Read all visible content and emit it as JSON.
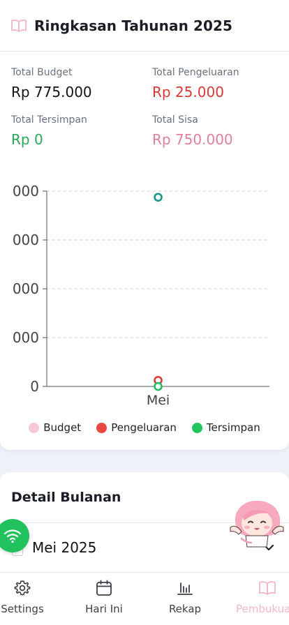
{
  "summary": {
    "title": "Ringkasan Tahunan 2025",
    "stats": [
      {
        "label": "Total Budget",
        "value": "Rp 775.000"
      },
      {
        "label": "Total Pengeluaran",
        "value": "Rp 25.000"
      },
      {
        "label": "Total Tersimpan",
        "value": "Rp 0"
      },
      {
        "label": "Total Sisa",
        "value": "Rp 750.000"
      }
    ]
  },
  "chart_data": {
    "type": "scatter",
    "categories": [
      "Mei"
    ],
    "y_tick_labels": [
      "0",
      "000",
      "000",
      "000",
      "000"
    ],
    "ylim": [
      0,
      800000
    ],
    "series": [
      {
        "name": "Budget",
        "color": "#f7c9d6",
        "values": [
          775000
        ]
      },
      {
        "name": "Pengeluaran",
        "color": "#e8473f",
        "values": [
          25000
        ]
      },
      {
        "name": "Tersimpan",
        "color": "#22c55e",
        "values": [
          0
        ]
      }
    ],
    "grid": true,
    "legend_position": "bottom"
  },
  "detail": {
    "title": "Detail Bulanan",
    "months": [
      {
        "label": "Mei 2025"
      }
    ]
  },
  "icons": {
    "header": "book-open-icon",
    "fab": "wifi-icon",
    "month_toggle": "chevron-down-icon"
  },
  "nav": {
    "items": [
      {
        "label": "Settings",
        "icon": "gear-icon"
      },
      {
        "label": "Hari Ini",
        "icon": "calendar-icon"
      },
      {
        "label": "Rekap",
        "icon": "bar-chart-icon"
      },
      {
        "label": "Pembukua",
        "icon": "book-open-icon"
      }
    ],
    "active_index": 3
  }
}
